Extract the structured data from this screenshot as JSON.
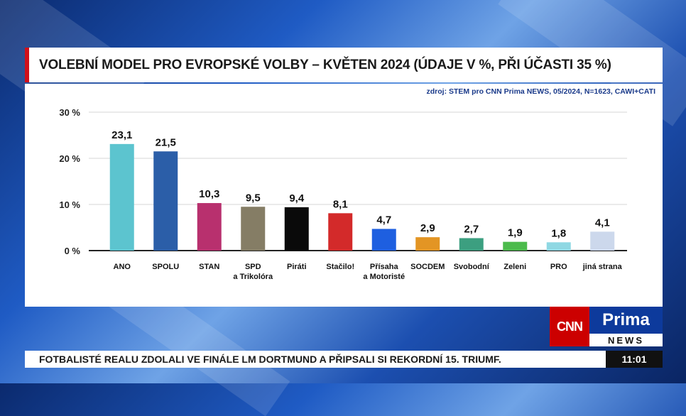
{
  "title": "VOLEBNÍ MODEL PRO EVROPSKÉ VOLBY – KVĚTEN 2024 (ÚDAJE V %, PŘI ÚČASTI 35 %)",
  "source": "zdroj: STEM pro CNN Prima NEWS, 05/2024, N=1623, CAWI+CATI",
  "logo": {
    "cnn": "CNN",
    "prima": "Prima",
    "news": "NEWS"
  },
  "ticker": {
    "text": "FOTBALISTÉ REALU ZDOLALI VE FINÁLE LM DORTMUND A PŘIPSALI SI REKORDNÍ 15. TRIUMF.",
    "time": "11:01"
  },
  "chart_data": {
    "type": "bar",
    "ylim": [
      0,
      30
    ],
    "yticks": [
      "0 %",
      "10 %",
      "20 %",
      "30 %"
    ],
    "grid": true,
    "categories": [
      "ANO",
      "SPOLU",
      "STAN",
      "SPD\na Trikolóra",
      "Piráti",
      "Stačilo!",
      "Přísaha\na Motoristé",
      "SOCDEM",
      "Svobodní",
      "Zeleni",
      "PRO",
      "jiná strana"
    ],
    "values": [
      23.1,
      21.5,
      10.3,
      9.5,
      9.4,
      8.1,
      4.7,
      2.9,
      2.7,
      1.9,
      1.8,
      4.1
    ],
    "value_labels": [
      "23,1",
      "21,5",
      "10,3",
      "9,5",
      "9,4",
      "8,1",
      "4,7",
      "2,9",
      "2,7",
      "1,9",
      "1,8",
      "4,1"
    ],
    "colors": [
      "#5cc4cf",
      "#2b5ea8",
      "#b8306e",
      "#857d65",
      "#0a0a0a",
      "#d32a2a",
      "#1e5fe0",
      "#e39524",
      "#3c9f80",
      "#4cbb4c",
      "#8fd8e3",
      "#ccd8ec"
    ]
  }
}
